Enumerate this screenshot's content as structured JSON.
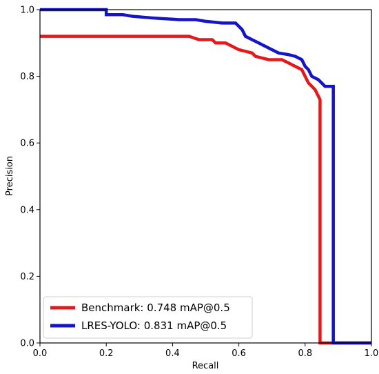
{
  "chart_data": {
    "type": "line",
    "title": "",
    "xlabel": "Recall",
    "ylabel": "Precision",
    "xlim": [
      0,
      1
    ],
    "ylim": [
      0,
      1
    ],
    "xticks": [
      "0.0",
      "0.2",
      "0.4",
      "0.6",
      "0.8",
      "1.0"
    ],
    "yticks": [
      "0.0",
      "0.2",
      "0.4",
      "0.6",
      "0.8",
      "1.0"
    ],
    "grid": false,
    "legend_position": "lower-left",
    "series": [
      {
        "name": "Benchmark: 0.748 mAP@0.5",
        "color": "#e31a1c",
        "points": [
          [
            0.0,
            0.92
          ],
          [
            0.45,
            0.92
          ],
          [
            0.48,
            0.91
          ],
          [
            0.52,
            0.91
          ],
          [
            0.53,
            0.9
          ],
          [
            0.56,
            0.9
          ],
          [
            0.58,
            0.89
          ],
          [
            0.6,
            0.88
          ],
          [
            0.62,
            0.875
          ],
          [
            0.64,
            0.87
          ],
          [
            0.65,
            0.86
          ],
          [
            0.67,
            0.855
          ],
          [
            0.69,
            0.85
          ],
          [
            0.73,
            0.85
          ],
          [
            0.75,
            0.84
          ],
          [
            0.77,
            0.83
          ],
          [
            0.79,
            0.82
          ],
          [
            0.8,
            0.8
          ],
          [
            0.81,
            0.78
          ],
          [
            0.82,
            0.77
          ],
          [
            0.83,
            0.76
          ],
          [
            0.84,
            0.74
          ],
          [
            0.845,
            0.73
          ],
          [
            0.845,
            0.0
          ],
          [
            1.0,
            0.0
          ]
        ]
      },
      {
        "name": "LRES-YOLO: 0.831 mAP@0.5",
        "color": "#1414c8",
        "points": [
          [
            0.0,
            1.0
          ],
          [
            0.2,
            1.0
          ],
          [
            0.2,
            0.985
          ],
          [
            0.25,
            0.985
          ],
          [
            0.28,
            0.98
          ],
          [
            0.34,
            0.975
          ],
          [
            0.42,
            0.97
          ],
          [
            0.47,
            0.97
          ],
          [
            0.5,
            0.965
          ],
          [
            0.55,
            0.96
          ],
          [
            0.59,
            0.96
          ],
          [
            0.6,
            0.95
          ],
          [
            0.61,
            0.94
          ],
          [
            0.62,
            0.92
          ],
          [
            0.64,
            0.91
          ],
          [
            0.66,
            0.9
          ],
          [
            0.68,
            0.89
          ],
          [
            0.7,
            0.88
          ],
          [
            0.72,
            0.87
          ],
          [
            0.75,
            0.865
          ],
          [
            0.77,
            0.86
          ],
          [
            0.79,
            0.85
          ],
          [
            0.8,
            0.83
          ],
          [
            0.81,
            0.82
          ],
          [
            0.82,
            0.8
          ],
          [
            0.84,
            0.79
          ],
          [
            0.85,
            0.78
          ],
          [
            0.86,
            0.77
          ],
          [
            0.88,
            0.77
          ],
          [
            0.885,
            0.77
          ],
          [
            0.885,
            0.0
          ],
          [
            1.0,
            0.0
          ]
        ]
      }
    ]
  }
}
